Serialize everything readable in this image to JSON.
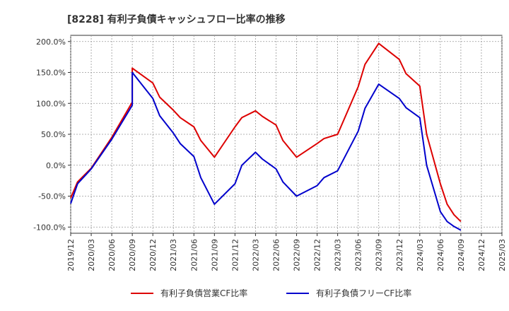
{
  "chart_data": {
    "type": "line",
    "title": "[8228]  有利子負債キャッシュフロー比率の推移",
    "xlabel": "",
    "ylabel": "",
    "ylim": [
      -110,
      210
    ],
    "y_ticks": [
      "200.0%",
      "150.0%",
      "100.0%",
      "50.0%",
      "0.0%",
      "-50.0%",
      "-100.0%"
    ],
    "y_tick_values": [
      200,
      150,
      100,
      50,
      0,
      -50,
      -100
    ],
    "x_ticks": [
      "2019/12",
      "2020/03",
      "2020/06",
      "2020/09",
      "2020/12",
      "2021/03",
      "2021/06",
      "2021/09",
      "2021/12",
      "2022/03",
      "2022/06",
      "2022/09",
      "2022/12",
      "2023/03",
      "2023/06",
      "2023/09",
      "2023/12",
      "2024/03",
      "2024/06",
      "2024/09",
      "2024/12",
      "2025/03"
    ],
    "grid": true,
    "legend_position": "bottom",
    "series": [
      {
        "name": "有利子負債営業CF比率",
        "color": "#dd0000",
        "points": [
          {
            "x": "2019/12",
            "y": -53
          },
          {
            "x": "2020/01",
            "y": -27
          },
          {
            "x": "2020/03",
            "y": -5
          },
          {
            "x": "2020/06",
            "y": 45
          },
          {
            "x": "2020/09",
            "y": 102
          },
          {
            "x": "2020/09",
            "y": 157
          },
          {
            "x": "2020/12",
            "y": 133
          },
          {
            "x": "2021/01",
            "y": 110
          },
          {
            "x": "2021/03",
            "y": 89
          },
          {
            "x": "2021/04",
            "y": 77
          },
          {
            "x": "2021/06",
            "y": 62
          },
          {
            "x": "2021/07",
            "y": 40
          },
          {
            "x": "2021/09",
            "y": 13
          },
          {
            "x": "2021/12",
            "y": 62
          },
          {
            "x": "2022/01",
            "y": 77
          },
          {
            "x": "2022/03",
            "y": 88
          },
          {
            "x": "2022/04",
            "y": 79
          },
          {
            "x": "2022/06",
            "y": 65
          },
          {
            "x": "2022/07",
            "y": 40
          },
          {
            "x": "2022/09",
            "y": 13
          },
          {
            "x": "2022/12",
            "y": 35
          },
          {
            "x": "2023/01",
            "y": 43
          },
          {
            "x": "2023/03",
            "y": 50
          },
          {
            "x": "2023/06",
            "y": 127
          },
          {
            "x": "2023/07",
            "y": 163
          },
          {
            "x": "2023/09",
            "y": 197
          },
          {
            "x": "2023/12",
            "y": 171
          },
          {
            "x": "2024/01",
            "y": 148
          },
          {
            "x": "2024/03",
            "y": 128
          },
          {
            "x": "2024/04",
            "y": 50
          },
          {
            "x": "2024/06",
            "y": -30
          },
          {
            "x": "2024/07",
            "y": -63
          },
          {
            "x": "2024/08",
            "y": -80
          },
          {
            "x": "2024/09",
            "y": -91
          }
        ]
      },
      {
        "name": "有利子負債フリーCF比率",
        "color": "#0000cc",
        "points": [
          {
            "x": "2019/12",
            "y": -62
          },
          {
            "x": "2020/01",
            "y": -30
          },
          {
            "x": "2020/03",
            "y": -6
          },
          {
            "x": "2020/06",
            "y": 42
          },
          {
            "x": "2020/09",
            "y": 97
          },
          {
            "x": "2020/09",
            "y": 150
          },
          {
            "x": "2020/12",
            "y": 108
          },
          {
            "x": "2021/01",
            "y": 80
          },
          {
            "x": "2021/03",
            "y": 52
          },
          {
            "x": "2021/04",
            "y": 35
          },
          {
            "x": "2021/06",
            "y": 14
          },
          {
            "x": "2021/07",
            "y": -20
          },
          {
            "x": "2021/09",
            "y": -63
          },
          {
            "x": "2021/12",
            "y": -30
          },
          {
            "x": "2022/01",
            "y": 0
          },
          {
            "x": "2022/03",
            "y": 21
          },
          {
            "x": "2022/04",
            "y": 10
          },
          {
            "x": "2022/06",
            "y": -6
          },
          {
            "x": "2022/07",
            "y": -27
          },
          {
            "x": "2022/09",
            "y": -50
          },
          {
            "x": "2022/12",
            "y": -33
          },
          {
            "x": "2023/01",
            "y": -20
          },
          {
            "x": "2023/03",
            "y": -9
          },
          {
            "x": "2023/06",
            "y": 55
          },
          {
            "x": "2023/07",
            "y": 92
          },
          {
            "x": "2023/09",
            "y": 131
          },
          {
            "x": "2023/12",
            "y": 108
          },
          {
            "x": "2024/01",
            "y": 93
          },
          {
            "x": "2024/03",
            "y": 77
          },
          {
            "x": "2024/04",
            "y": 0
          },
          {
            "x": "2024/06",
            "y": -75
          },
          {
            "x": "2024/07",
            "y": -91
          },
          {
            "x": "2024/08",
            "y": -99
          },
          {
            "x": "2024/09",
            "y": -105
          }
        ]
      }
    ]
  }
}
